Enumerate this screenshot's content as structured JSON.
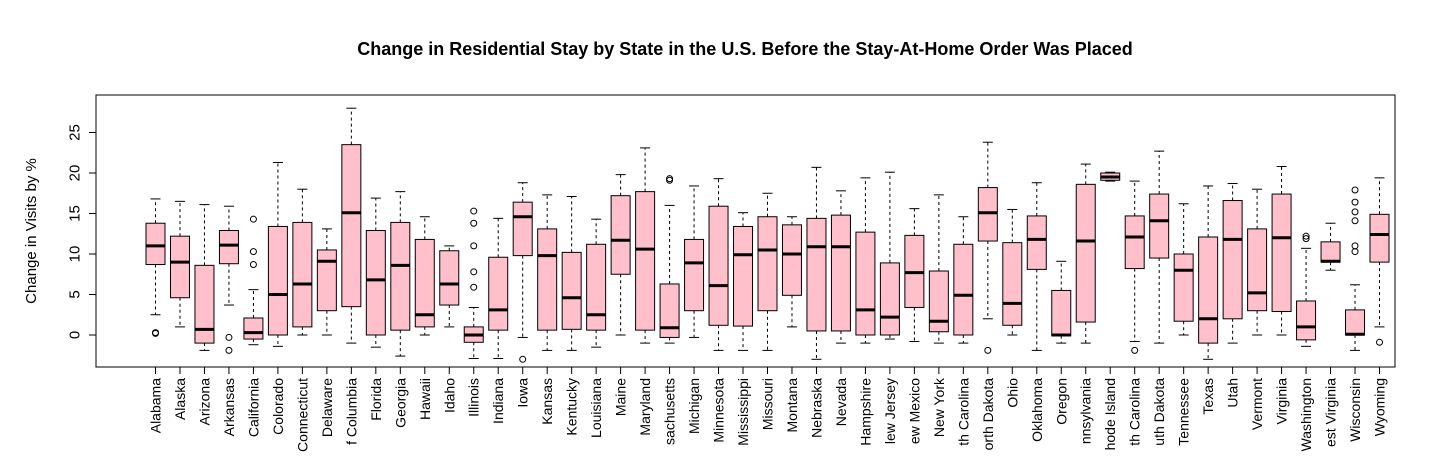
{
  "chart_data": {
    "type": "boxplot",
    "title": "Change in Residential Stay by State in the U.S. Before the Stay-At-Home Order Was Placed",
    "ylabel": "Change in Visits by %",
    "xlabel": "",
    "ylim": [
      -4,
      29.5
    ],
    "yticks": [
      0,
      5,
      10,
      15,
      20,
      25
    ],
    "box_fill": "#ffc0cb",
    "stroke": "#000000",
    "categories": [
      "Alabama",
      "Alaska",
      "Arizona",
      "Arkansas",
      "California",
      "Colorado",
      "Connecticut",
      "Delaware",
      "District of Columbia",
      "Florida",
      "Georgia",
      "Hawaii",
      "Idaho",
      "Illinois",
      "Indiana",
      "Iowa",
      "Kansas",
      "Kentucky",
      "Louisiana",
      "Maine",
      "Maryland",
      "Massachusetts",
      "Michigan",
      "Minnesota",
      "Mississippi",
      "Missouri",
      "Montana",
      "Nebraska",
      "Nevada",
      "New Hampshire",
      "New Jersey",
      "New Mexico",
      "New York",
      "North Carolina",
      "North Dakota",
      "Ohio",
      "Oklahoma",
      "Oregon",
      "Pennsylvania",
      "Rhode Island",
      "South Carolina",
      "South Dakota",
      "Tennessee",
      "Texas",
      "Utah",
      "Vermont",
      "Virginia",
      "Washington",
      "West Virginia",
      "Wisconsin",
      "Wyoming"
    ],
    "category_labels": [
      "Alabama",
      "Alaska",
      "Arizona",
      "Arkansas",
      "California",
      "Colorado",
      "Connecticut",
      "Delaware",
      "f Columbia",
      "Florida",
      "Georgia",
      "Hawaii",
      "Idaho",
      "Illinois",
      "Indiana",
      "Iowa",
      "Kansas",
      "Kentucky",
      "Louisiana",
      "Maine",
      "Maryland",
      "sachusetts",
      "Michigan",
      "Minnesota",
      "Mississippi",
      "Missouri",
      "Montana",
      "Nebraska",
      "Nevada",
      "Hampshire",
      "lew Jersey",
      "ew Mexico",
      "New York",
      "th Carolina",
      "orth Dakota",
      "Ohio",
      "Oklahoma",
      "Oregon",
      "nnsylvania",
      "hode Island",
      "th Carolina",
      "uth Dakota",
      "Tennessee",
      "Texas",
      "Utah",
      "Vermont",
      "Virginia",
      "Washington",
      "est Virginia",
      "Wisconsin",
      "Wyoming"
    ],
    "boxes": [
      {
        "min": 2.5,
        "q1": 8.7,
        "median": 11.0,
        "q3": 13.8,
        "max": 16.8,
        "outliers": [
          0.2,
          0.3
        ]
      },
      {
        "min": 1.0,
        "q1": 4.6,
        "median": 9.0,
        "q3": 12.2,
        "max": 16.5,
        "outliers": []
      },
      {
        "min": -1.9,
        "q1": -1.0,
        "median": 0.7,
        "q3": 8.6,
        "max": 16.1,
        "outliers": []
      },
      {
        "min": 3.7,
        "q1": 8.8,
        "median": 11.1,
        "q3": 12.9,
        "max": 15.9,
        "outliers": [
          -0.3,
          -1.9
        ]
      },
      {
        "min": -1.2,
        "q1": -0.5,
        "median": 0.3,
        "q3": 2.1,
        "max": 5.6,
        "outliers": [
          8.7,
          10.3,
          14.3
        ]
      },
      {
        "min": -1.4,
        "q1": 0.0,
        "median": 5.0,
        "q3": 13.4,
        "max": 21.3,
        "outliers": []
      },
      {
        "min": 0.0,
        "q1": 1.0,
        "median": 6.3,
        "q3": 13.9,
        "max": 18.0,
        "outliers": []
      },
      {
        "min": 0.0,
        "q1": 3.0,
        "median": 9.1,
        "q3": 10.5,
        "max": 13.1,
        "outliers": []
      },
      {
        "min": -1.0,
        "q1": 3.5,
        "median": 15.1,
        "q3": 23.5,
        "max": 28.0,
        "outliers": []
      },
      {
        "min": -1.5,
        "q1": 0.0,
        "median": 6.8,
        "q3": 12.9,
        "max": 16.9,
        "outliers": []
      },
      {
        "min": -2.6,
        "q1": 0.6,
        "median": 8.6,
        "q3": 13.9,
        "max": 17.7,
        "outliers": []
      },
      {
        "min": 0.0,
        "q1": 1.0,
        "median": 2.5,
        "q3": 11.8,
        "max": 14.6,
        "outliers": []
      },
      {
        "min": 1.0,
        "q1": 3.7,
        "median": 6.3,
        "q3": 10.4,
        "max": 11.0,
        "outliers": []
      },
      {
        "min": -2.9,
        "q1": -0.9,
        "median": 0.0,
        "q3": 1.0,
        "max": 3.4,
        "outliers": [
          5.9,
          7.8,
          11.0,
          13.8,
          15.3
        ]
      },
      {
        "min": -2.9,
        "q1": 0.6,
        "median": 3.1,
        "q3": 9.6,
        "max": 14.4,
        "outliers": []
      },
      {
        "min": -0.3,
        "q1": 9.8,
        "median": 14.6,
        "q3": 16.4,
        "max": 18.8,
        "outliers": [
          -3.0
        ]
      },
      {
        "min": -1.9,
        "q1": 0.6,
        "median": 9.8,
        "q3": 13.1,
        "max": 17.3,
        "outliers": []
      },
      {
        "min": -1.9,
        "q1": 0.7,
        "median": 4.6,
        "q3": 10.2,
        "max": 17.1,
        "outliers": []
      },
      {
        "min": -1.5,
        "q1": 0.6,
        "median": 2.5,
        "q3": 11.2,
        "max": 14.3,
        "outliers": []
      },
      {
        "min": 0.0,
        "q1": 7.5,
        "median": 11.7,
        "q3": 17.2,
        "max": 19.8,
        "outliers": []
      },
      {
        "min": -1.0,
        "q1": 0.6,
        "median": 10.6,
        "q3": 17.7,
        "max": 23.1,
        "outliers": []
      },
      {
        "min": -1.0,
        "q1": -0.3,
        "median": 0.9,
        "q3": 6.3,
        "max": 16.0,
        "outliers": [
          19.1,
          19.3
        ]
      },
      {
        "min": -0.3,
        "q1": 3.0,
        "median": 8.9,
        "q3": 11.8,
        "max": 18.4,
        "outliers": []
      },
      {
        "min": -1.9,
        "q1": 1.2,
        "median": 6.1,
        "q3": 15.9,
        "max": 19.3,
        "outliers": []
      },
      {
        "min": -1.9,
        "q1": 1.1,
        "median": 9.9,
        "q3": 13.4,
        "max": 15.1,
        "outliers": []
      },
      {
        "min": -1.9,
        "q1": 3.0,
        "median": 10.5,
        "q3": 14.6,
        "max": 17.5,
        "outliers": []
      },
      {
        "min": 1.0,
        "q1": 4.9,
        "median": 10.0,
        "q3": 13.6,
        "max": 14.6,
        "outliers": []
      },
      {
        "min": -3.0,
        "q1": 0.5,
        "median": 10.9,
        "q3": 14.4,
        "max": 20.7,
        "outliers": []
      },
      {
        "min": -1.0,
        "q1": 0.5,
        "median": 10.9,
        "q3": 14.8,
        "max": 17.8,
        "outliers": []
      },
      {
        "min": -1.0,
        "q1": 0.0,
        "median": 3.1,
        "q3": 12.7,
        "max": 19.4,
        "outliers": []
      },
      {
        "min": -0.5,
        "q1": 0.0,
        "median": 2.2,
        "q3": 8.9,
        "max": 20.1,
        "outliers": []
      },
      {
        "min": -0.8,
        "q1": 3.4,
        "median": 7.7,
        "q3": 12.3,
        "max": 15.6,
        "outliers": []
      },
      {
        "min": -1.0,
        "q1": 0.4,
        "median": 1.7,
        "q3": 7.9,
        "max": 17.3,
        "outliers": []
      },
      {
        "min": -1.0,
        "q1": 0.0,
        "median": 4.9,
        "q3": 11.2,
        "max": 14.6,
        "outliers": []
      },
      {
        "min": 2.0,
        "q1": 11.6,
        "median": 15.1,
        "q3": 18.2,
        "max": 23.8,
        "outliers": [
          -1.9
        ]
      },
      {
        "min": 0.0,
        "q1": 1.2,
        "median": 3.9,
        "q3": 11.4,
        "max": 15.5,
        "outliers": []
      },
      {
        "min": -1.9,
        "q1": 8.1,
        "median": 11.8,
        "q3": 14.7,
        "max": 18.8,
        "outliers": []
      },
      {
        "min": -1.0,
        "q1": -0.1,
        "median": 0.0,
        "q3": 5.5,
        "max": 9.1,
        "outliers": []
      },
      {
        "min": -1.0,
        "q1": 1.6,
        "median": 11.6,
        "q3": 18.6,
        "max": 21.1,
        "outliers": []
      },
      {
        "min": 19.0,
        "q1": 19.1,
        "median": 19.5,
        "q3": 20.0,
        "max": 20.1,
        "outliers": []
      },
      {
        "min": -0.8,
        "q1": 8.2,
        "median": 12.1,
        "q3": 14.7,
        "max": 19.0,
        "outliers": [
          -1.9
        ]
      },
      {
        "min": -1.0,
        "q1": 9.5,
        "median": 14.1,
        "q3": 17.4,
        "max": 22.7,
        "outliers": []
      },
      {
        "min": 0.0,
        "q1": 1.7,
        "median": 8.0,
        "q3": 10.0,
        "max": 16.2,
        "outliers": []
      },
      {
        "min": -3.0,
        "q1": -1.0,
        "median": 2.0,
        "q3": 12.1,
        "max": 18.4,
        "outliers": []
      },
      {
        "min": -1.0,
        "q1": 2.0,
        "median": 11.8,
        "q3": 16.6,
        "max": 18.7,
        "outliers": []
      },
      {
        "min": 0.0,
        "q1": 3.0,
        "median": 5.2,
        "q3": 13.1,
        "max": 18.0,
        "outliers": []
      },
      {
        "min": 0.0,
        "q1": 2.9,
        "median": 12.0,
        "q3": 17.4,
        "max": 20.8,
        "outliers": []
      },
      {
        "min": -1.4,
        "q1": -0.6,
        "median": 1.0,
        "q3": 4.2,
        "max": 10.7,
        "outliers": [
          11.9,
          12.2
        ]
      },
      {
        "min": 8.0,
        "q1": 9.0,
        "median": 9.1,
        "q3": 11.5,
        "max": 13.8,
        "outliers": []
      },
      {
        "min": -1.9,
        "q1": 0.0,
        "median": 0.1,
        "q3": 3.1,
        "max": 6.2,
        "outliers": [
          10.3,
          11.0,
          14.1,
          15.2,
          16.4,
          17.9
        ]
      },
      {
        "min": 1.0,
        "q1": 9.0,
        "median": 12.4,
        "q3": 14.9,
        "max": 19.4,
        "outliers": [
          -0.9
        ]
      }
    ]
  }
}
